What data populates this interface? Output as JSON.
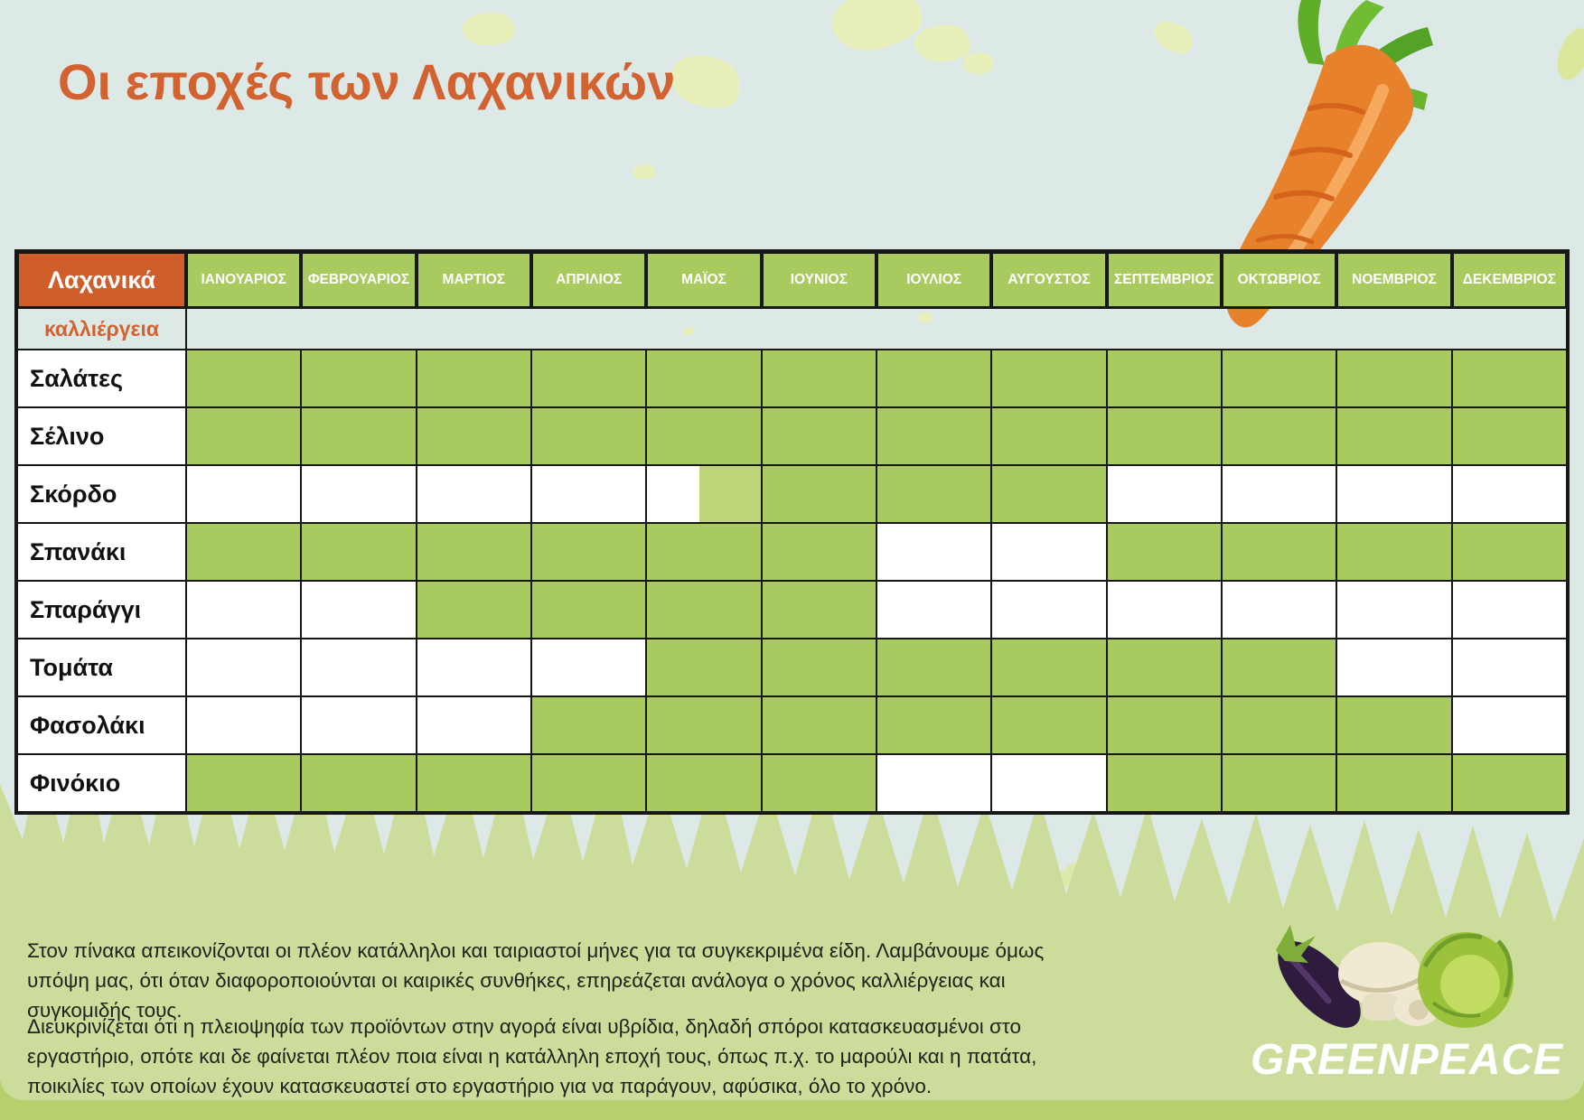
{
  "chart_data": {
    "type": "heatmap",
    "title": "Οι εποχές των Λαχανικών",
    "x_categories": [
      "ΙΑΝΟΥΑΡΙΟΣ",
      "ΦΕΒΡΟΥΑΡΙΟΣ",
      "ΜΑΡΤΙΟΣ",
      "ΑΠΡΙΛΙΟΣ",
      "ΜΑΪΟΣ",
      "ΙΟΥΝΙΟΣ",
      "ΙΟΥΛΙΟΣ",
      "ΑΥΓΟΥΣΤΟΣ",
      "ΣΕΠΤΕΜΒΡΙΟΣ",
      "ΟΚΤΩΒΡΙΟΣ",
      "ΝΟΕΜΒΡΙΟΣ",
      "ΔΕΚΕΜΒΡΙΟΣ"
    ],
    "y_categories": [
      "Σαλάτες",
      "Σέλινο",
      "Σκόρδο",
      "Σπανάκι",
      "Σπαράγγι",
      "Τομάτα",
      "Φασολάκι",
      "Φινόκιο"
    ],
    "values": [
      [
        1,
        1,
        1,
        1,
        1,
        1,
        1,
        1,
        1,
        1,
        1,
        1
      ],
      [
        1,
        1,
        1,
        1,
        1,
        1,
        1,
        1,
        1,
        1,
        1,
        1
      ],
      [
        0,
        0,
        0,
        0,
        0.5,
        1,
        1,
        1,
        0,
        0,
        0,
        0
      ],
      [
        1,
        1,
        1,
        1,
        1,
        1,
        0,
        0,
        1,
        1,
        1,
        1
      ],
      [
        0,
        0,
        1,
        1,
        1,
        1,
        0,
        0,
        0,
        0,
        0,
        0
      ],
      [
        0,
        0,
        0,
        0,
        1,
        1,
        1,
        1,
        1,
        1,
        0,
        0
      ],
      [
        0,
        0,
        0,
        1,
        1,
        1,
        1,
        1,
        1,
        1,
        1,
        0
      ],
      [
        1,
        1,
        1,
        1,
        1,
        1,
        0,
        0,
        1,
        1,
        1,
        1
      ]
    ],
    "value_meaning": "1 = green cell (μήνες καλλιέργειας / in season), 0.5 = green starts mid-month, 0 = white cell (off season)",
    "grid": true,
    "legend_position": "none"
  },
  "table": {
    "corner_label": "Λαχανικά",
    "cultivation_label": "καλλιέργεια"
  },
  "footnotes": {
    "para1": "Στον πίνακα απεικονίζονται οι πλέον κατάλληλοι και ταιριαστοί μήνες για τα συγκεκριμένα είδη. Λαμβάνουμε όμως υπόψη μας, ότι όταν διαφοροποιούνται οι καιρικές συνθήκες, επηρεάζεται ανάλογα ο χρόνος καλλιέργειας και συγκομιδής τους.",
    "para2": "Διευκρινίζεται ότι η πλειοψηφία των προϊόντων στην αγορά είναι υβρίδια, δηλαδή σπόροι κατασκευασμένοι στο εργαστήριο, οπότε και δε φαίνεται πλέον ποια είναι η κατάλληλη εποχή τους, όπως π.χ. το μαρούλι και η πατάτα, ποικιλίες των οποίων έχουν κατασκευαστεί στο εργαστήριο για να παράγουν, αφύσικα, όλο το χρόνο."
  },
  "logo": {
    "brand": "GREENPEACE"
  },
  "colors": {
    "title_orange": "#d2622f",
    "header_orange": "#cf5e2b",
    "cell_green": "#a9ca5f",
    "cell_green_light": "#bdd578",
    "bg_top": "#dde9e7",
    "bg_bottom": "#ccdc9b",
    "bottom_strip": "#b7d06e",
    "carrot_orange": "#e8812c",
    "text_dark": "#23231c"
  }
}
